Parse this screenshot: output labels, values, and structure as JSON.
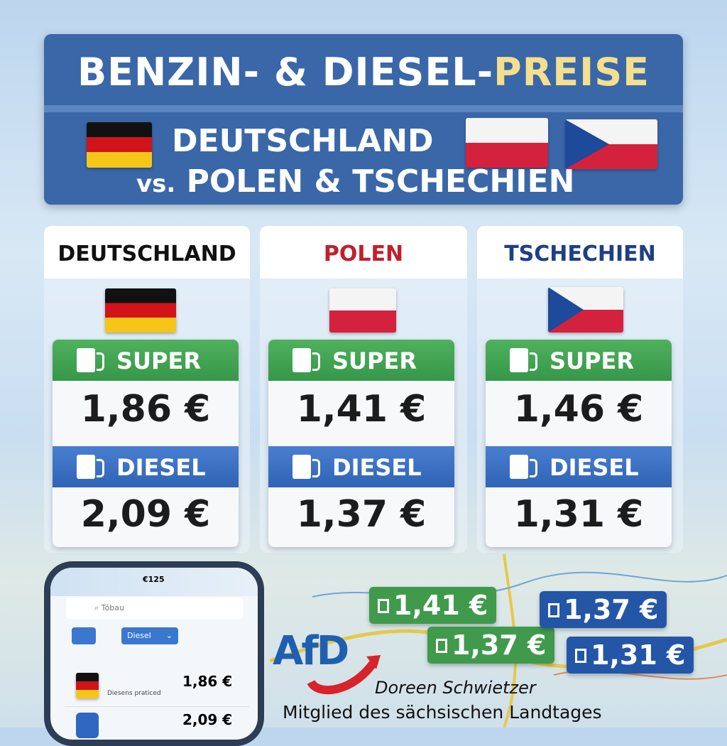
{
  "header": {
    "title_part1": "BENZIN- & DIESEL-",
    "title_part2": "PREISE",
    "subtitle_line1": "DEUTSCHLAND",
    "subtitle_vs": "vs.",
    "subtitle_line2": "POLEN & TSCHECHIEN"
  },
  "colors": {
    "header_bg": "#3a67a8",
    "super": "#3f9a4c",
    "diesel": "#2f63b5",
    "highlight": "#f4df8e",
    "polen": "#c0202c",
    "tschechien": "#1d3f85"
  },
  "countries": [
    {
      "name": "DEUTSCHLAND",
      "flag": "germany-flag",
      "super_label": "SUPER",
      "super_price": "1,86 €",
      "diesel_label": "DIESEL",
      "diesel_price": "2,09 €"
    },
    {
      "name": "POLEN",
      "flag": "poland-flag",
      "super_label": "SUPER",
      "super_price": "1,41 €",
      "diesel_label": "DIESEL",
      "diesel_price": "1,37 €"
    },
    {
      "name": "TSCHECHIEN",
      "flag": "czech-flag",
      "super_label": "SUPER",
      "super_price": "1,46 €",
      "diesel_label": "DIESEL",
      "diesel_price": "1,31 €"
    }
  ],
  "phone": {
    "time": "€125",
    "search_placeholder": "Tóbau",
    "fuel_select": "Diesel",
    "row1_price": "1,86 €",
    "row1_caption": "Diesens praticed",
    "row2_price": "2,09 €"
  },
  "map_bubbles": [
    "1,41 €",
    "1,37 €",
    "1,37 €",
    "1,31 €"
  ],
  "footer": {
    "logo": "AfD",
    "name": "Doreen Schwietzer",
    "role": "Mitglied des sächsischen Landtages"
  }
}
